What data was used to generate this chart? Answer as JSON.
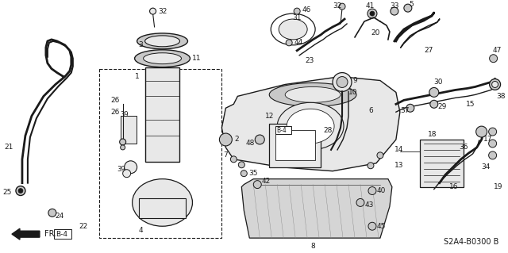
{
  "figsize": [
    6.4,
    3.19
  ],
  "dpi": 100,
  "bg": "#ffffff",
  "lc": "#1a1a1a",
  "diagram_code": "S2A4-B0300 B",
  "gray_fill": "#c8c8c8",
  "light_fill": "#e8e8e8",
  "white": "#ffffff"
}
